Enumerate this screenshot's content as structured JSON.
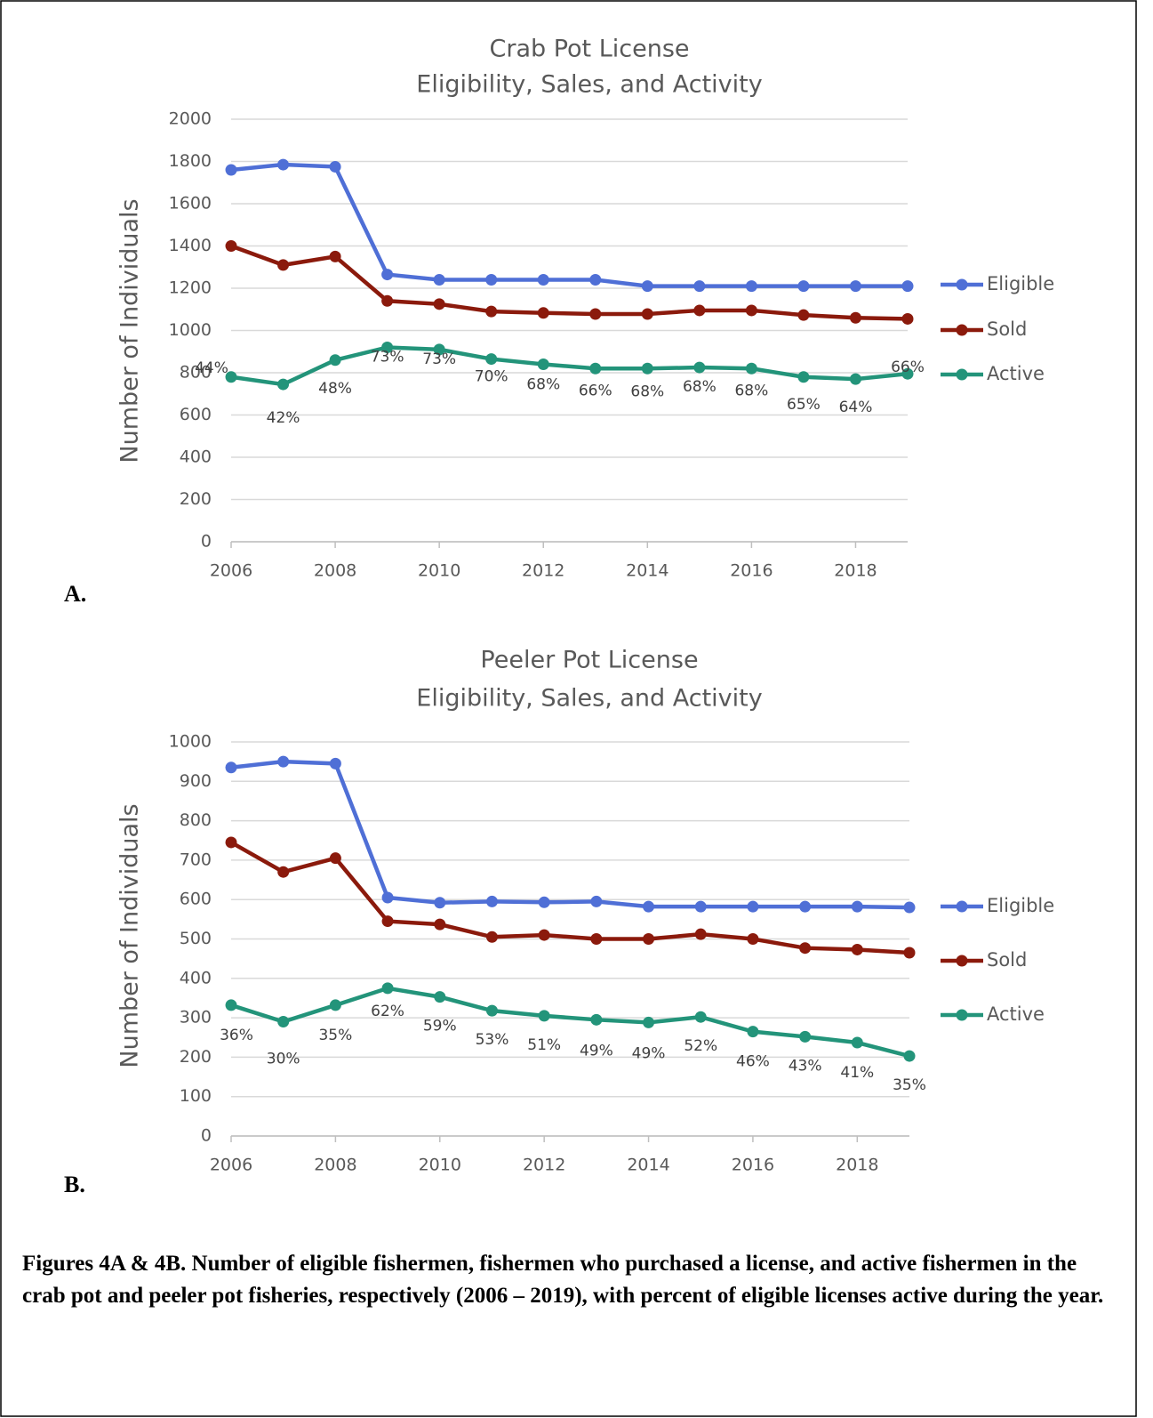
{
  "chart_data": [
    {
      "type": "line",
      "title": "Crab Pot License",
      "subtitle": "Eligibility, Sales, and Activity",
      "y_label": "Number of Individuals",
      "panel_label": "A.",
      "x": [
        2006,
        2007,
        2008,
        2009,
        2010,
        2011,
        2012,
        2013,
        2014,
        2015,
        2016,
        2017,
        2018,
        2019
      ],
      "xlim": [
        2006,
        2019
      ],
      "xticks": [
        2006,
        2008,
        2010,
        2012,
        2014,
        2016,
        2018
      ],
      "ylim": [
        0,
        2000
      ],
      "yticks": [
        0,
        200,
        400,
        600,
        800,
        1000,
        1200,
        1400,
        1600,
        1800,
        2000
      ],
      "grid": true,
      "legend": "right",
      "series": [
        {
          "name": "Eligible",
          "color": "#4f6fd6",
          "values": [
            1760,
            1785,
            1775,
            1265,
            1240,
            1240,
            1240,
            1240,
            1210,
            1210,
            1210,
            1210,
            1210,
            1210
          ]
        },
        {
          "name": "Sold",
          "color": "#8b1a0c",
          "values": [
            1400,
            1310,
            1350,
            1140,
            1125,
            1090,
            1083,
            1078,
            1078,
            1095,
            1095,
            1073,
            1060,
            1055
          ]
        },
        {
          "name": "Active",
          "color": "#23947a",
          "values": [
            780,
            745,
            860,
            920,
            910,
            865,
            840,
            820,
            820,
            825,
            820,
            780,
            770,
            795
          ],
          "data_labels": [
            "44%",
            "42%",
            "48%",
            "73%",
            "73%",
            "70%",
            "68%",
            "66%",
            "68%",
            "68%",
            "68%",
            "65%",
            "64%",
            "66%"
          ]
        }
      ]
    },
    {
      "type": "line",
      "title": "Peeler Pot License",
      "subtitle": "Eligibility, Sales, and Activity",
      "y_label": "Number of Individuals",
      "panel_label": "B.",
      "x": [
        2006,
        2007,
        2008,
        2009,
        2010,
        2011,
        2012,
        2013,
        2014,
        2015,
        2016,
        2017,
        2018,
        2019
      ],
      "xlim": [
        2006,
        2019
      ],
      "xticks": [
        2006,
        2008,
        2010,
        2012,
        2014,
        2016,
        2018
      ],
      "ylim": [
        0,
        1000
      ],
      "yticks": [
        0,
        100,
        200,
        300,
        400,
        500,
        600,
        700,
        800,
        900,
        1000
      ],
      "grid": true,
      "legend": "right",
      "series": [
        {
          "name": "Eligible",
          "color": "#4f6fd6",
          "values": [
            935,
            950,
            945,
            605,
            592,
            595,
            593,
            595,
            582,
            582,
            582,
            582,
            582,
            580
          ]
        },
        {
          "name": "Sold",
          "color": "#8b1a0c",
          "values": [
            745,
            670,
            705,
            545,
            537,
            505,
            510,
            500,
            500,
            512,
            500,
            477,
            473,
            465
          ]
        },
        {
          "name": "Active",
          "color": "#23947a",
          "values": [
            332,
            290,
            332,
            375,
            353,
            318,
            305,
            295,
            288,
            302,
            265,
            252,
            237,
            203
          ],
          "data_labels": [
            "36%",
            "30%",
            "35%",
            "62%",
            "59%",
            "53%",
            "51%",
            "49%",
            "49%",
            "52%",
            "46%",
            "43%",
            "41%",
            "35%"
          ]
        }
      ]
    }
  ],
  "caption": "Figures 4A & 4B. Number of eligible fishermen, fishermen who purchased a license, and active fishermen in the crab pot and peeler pot fisheries, respectively (2006 – 2019), with percent of eligible licenses active during the year."
}
